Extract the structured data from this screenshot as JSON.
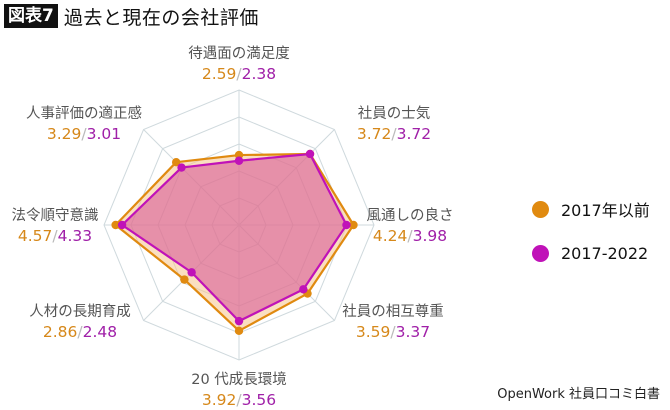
{
  "header": {
    "badge": "図表7",
    "title": "過去と現在の会社評価"
  },
  "legend": [
    {
      "label": "2017年以前",
      "color": "#e08a10"
    },
    {
      "label": "2017-2022",
      "color": "#c012b8"
    }
  ],
  "source": "OpenWork 社員口コミ白書",
  "axes": [
    {
      "name": "待遇面の満足度",
      "a": "2.59",
      "b": "2.38"
    },
    {
      "name": "社員の士気",
      "a": "3.72",
      "b": "3.72"
    },
    {
      "name": "風通しの良さ",
      "a": "4.24",
      "b": "3.98"
    },
    {
      "name": "社員の相互尊重",
      "a": "3.59",
      "b": "3.37"
    },
    {
      "name": "20 代成長環境",
      "a": "3.92",
      "b": "3.56"
    },
    {
      "name": "人材の長期育成",
      "a": "2.86",
      "b": "2.48"
    },
    {
      "name": "法令順守意識",
      "a": "4.57",
      "b": "4.33"
    },
    {
      "name": "人事評価の適正感",
      "a": "3.29",
      "b": "3.01"
    }
  ],
  "separator": "/",
  "chart_data": {
    "type": "radar",
    "title": "過去と現在の会社評価",
    "categories": [
      "待遇面の満足度",
      "社員の士気",
      "風通しの良さ",
      "社員の相互尊重",
      "20 代成長環境",
      "人材の長期育成",
      "法令順守意識",
      "人事評価の適正感"
    ],
    "series": [
      {
        "name": "2017年以前",
        "color": "#e08a10",
        "values": [
          2.59,
          3.72,
          4.24,
          3.59,
          3.92,
          2.86,
          4.57,
          3.29
        ]
      },
      {
        "name": "2017-2022",
        "color": "#c012b8",
        "values": [
          2.38,
          3.72,
          3.98,
          3.37,
          3.56,
          2.48,
          4.33,
          3.01
        ]
      }
    ],
    "rlim": [
      0,
      5
    ],
    "grid_levels": 5,
    "legend_position": "right"
  }
}
